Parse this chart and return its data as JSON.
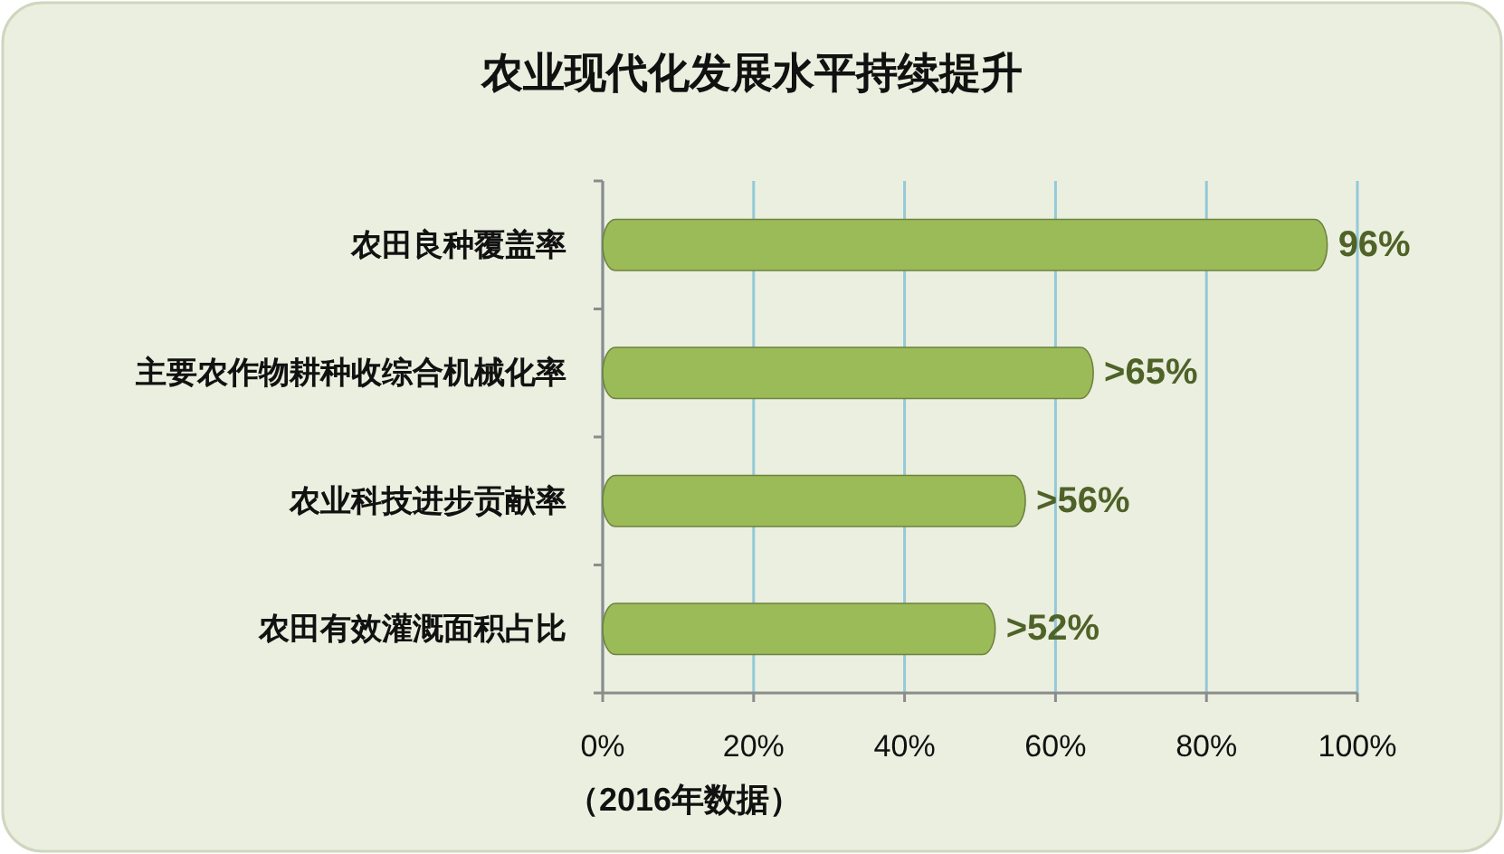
{
  "chart_data": {
    "type": "bar",
    "orientation": "horizontal",
    "title": "农业现代化发展水平持续提升",
    "categories": [
      "农田良种覆盖率",
      "主要农作物耕种收综合机械化率",
      "农业科技进步贡献率",
      "农田有效灌溉面积占比"
    ],
    "values": [
      96,
      65,
      56,
      52
    ],
    "value_labels": [
      "96%",
      ">65%",
      ">56%",
      ">52%"
    ],
    "color": "#9bbb59",
    "xlim": [
      0,
      100
    ],
    "xticks": [
      {
        "value": 0,
        "label": "0%"
      },
      {
        "value": 20,
        "label": "20%"
      },
      {
        "value": 40,
        "label": "40%"
      },
      {
        "value": 60,
        "label": "60%"
      },
      {
        "value": 80,
        "label": "80%"
      },
      {
        "value": 100,
        "label": "100%"
      }
    ],
    "grid": "x",
    "annotations": [
      "（2016年数据）"
    ]
  }
}
